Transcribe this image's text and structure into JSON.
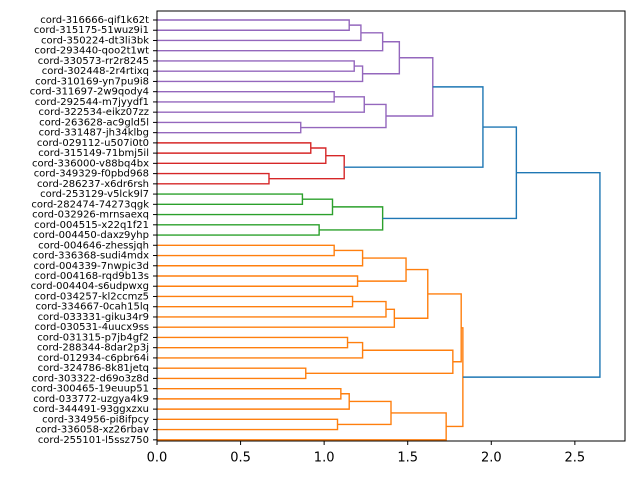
{
  "chart_data": {
    "type": "dendrogram",
    "orientation": "horizontal",
    "xlim": [
      0.0,
      2.8
    ],
    "xticks": [
      0.0,
      0.5,
      1.0,
      1.5,
      2.0,
      2.5
    ],
    "xtick_labels": [
      "0.0",
      "0.5",
      "1.0",
      "1.5",
      "2.0",
      "2.5"
    ],
    "leaves": [
      "cord-316666-qif1k62t",
      "cord-315175-51wuz9i1",
      "cord-350224-dt3li3bk",
      "cord-293440-qoo2t1wt",
      "cord-330573-rr2r8245",
      "cord-302448-2r4rtixq",
      "cord-310169-yn7pu9i8",
      "cord-311697-2w9qody4",
      "cord-292544-m7jyydf1",
      "cord-322534-eikz07zz",
      "cord-263628-ac9gld5l",
      "cord-331487-jh34klbg",
      "cord-029112-u507i0t0",
      "cord-315149-71bmj5il",
      "cord-336000-v88bq4bx",
      "cord-349329-f0pbd968",
      "cord-286237-x6dr6rsh",
      "cord-253129-v5lck9l7",
      "cord-282474-74273qgk",
      "cord-032926-mrnsaexq",
      "cord-004515-x22q1f21",
      "cord-004450-daxz9yhp",
      "cord-004646-zhessjqh",
      "cord-336368-sudi4mdx",
      "cord-004339-7nwpic3d",
      "cord-004168-rqd9b13s",
      "cord-004404-s6udpwxg",
      "cord-034257-kl2ccmz5",
      "cord-334667-0cah15lq",
      "cord-033331-giku34r9",
      "cord-030531-4uucx9ss",
      "cord-031315-p7jb4gf2",
      "cord-288344-8dar2p3j",
      "cord-012934-c6pbr64i",
      "cord-324786-8k81jetq",
      "cord-303322-d69o3z8d",
      "cord-300465-19euup51",
      "cord-033772-uzgya4k9",
      "cord-344491-93ggxzxu",
      "cord-334956-pi8ifpcy",
      "cord-336058-xz26rbav",
      "cord-255101-l5ssz750"
    ],
    "cluster_colors": {
      "purple": "#9467bd",
      "red": "#d62728",
      "green": "#2ca02c",
      "orange": "#ff7f0e",
      "blue": "#1f77b4"
    },
    "merges": [
      {
        "id": "m1",
        "a": 0,
        "b": 1,
        "height": 1.15,
        "color": "purple"
      },
      {
        "id": "m2",
        "a": "m1",
        "b": 2,
        "height": 1.22,
        "color": "purple"
      },
      {
        "id": "m3",
        "a": "m2",
        "b": 3,
        "height": 1.35,
        "color": "purple"
      },
      {
        "id": "m4",
        "a": 4,
        "b": 5,
        "height": 1.18,
        "color": "purple"
      },
      {
        "id": "m5",
        "a": "m4",
        "b": 6,
        "height": 1.23,
        "color": "purple"
      },
      {
        "id": "m6",
        "a": "m3",
        "b": "m5",
        "height": 1.45,
        "color": "purple"
      },
      {
        "id": "m7",
        "a": 7,
        "b": 8,
        "height": 1.06,
        "color": "purple"
      },
      {
        "id": "m8",
        "a": "m7",
        "b": 9,
        "height": 1.24,
        "color": "purple"
      },
      {
        "id": "m9",
        "a": 10,
        "b": 11,
        "height": 0.86,
        "color": "purple"
      },
      {
        "id": "m10",
        "a": "m8",
        "b": "m9",
        "height": 1.37,
        "color": "purple"
      },
      {
        "id": "m11",
        "a": "m6",
        "b": "m10",
        "height": 1.65,
        "color": "purple"
      },
      {
        "id": "m12",
        "a": 12,
        "b": 13,
        "height": 0.92,
        "color": "red"
      },
      {
        "id": "m13",
        "a": "m12",
        "b": 14,
        "height": 1.01,
        "color": "red"
      },
      {
        "id": "m14",
        "a": 15,
        "b": 16,
        "height": 0.67,
        "color": "red"
      },
      {
        "id": "m15",
        "a": "m13",
        "b": "m14",
        "height": 1.12,
        "color": "red"
      },
      {
        "id": "m16",
        "a": "m11",
        "b": "m15",
        "height": 1.95,
        "color": "blue"
      },
      {
        "id": "m17",
        "a": 17,
        "b": 18,
        "height": 0.87,
        "color": "green"
      },
      {
        "id": "m18",
        "a": "m17",
        "b": 19,
        "height": 1.05,
        "color": "green"
      },
      {
        "id": "m19",
        "a": 20,
        "b": 21,
        "height": 0.97,
        "color": "green"
      },
      {
        "id": "m20",
        "a": "m18",
        "b": "m19",
        "height": 1.35,
        "color": "green"
      },
      {
        "id": "m21",
        "a": "m16",
        "b": "m20",
        "height": 2.15,
        "color": "blue"
      },
      {
        "id": "m22",
        "a": 22,
        "b": 23,
        "height": 1.06,
        "color": "orange"
      },
      {
        "id": "m23",
        "a": "m22",
        "b": 24,
        "height": 1.23,
        "color": "orange"
      },
      {
        "id": "m24",
        "a": 25,
        "b": 26,
        "height": 1.2,
        "color": "orange"
      },
      {
        "id": "m25",
        "a": "m23",
        "b": "m24",
        "height": 1.49,
        "color": "orange"
      },
      {
        "id": "m26",
        "a": 27,
        "b": 28,
        "height": 1.17,
        "color": "orange"
      },
      {
        "id": "m27",
        "a": "m26",
        "b": 29,
        "height": 1.37,
        "color": "orange"
      },
      {
        "id": "m28",
        "a": "m27",
        "b": 30,
        "height": 1.42,
        "color": "orange"
      },
      {
        "id": "m29",
        "a": "m25",
        "b": "m28",
        "height": 1.62,
        "color": "orange"
      },
      {
        "id": "m30",
        "a": 31,
        "b": 32,
        "height": 1.14,
        "color": "orange"
      },
      {
        "id": "m31",
        "a": "m30",
        "b": 33,
        "height": 1.23,
        "color": "orange"
      },
      {
        "id": "m32",
        "a": 34,
        "b": 35,
        "height": 0.89,
        "color": "orange"
      },
      {
        "id": "m33",
        "a": "m31",
        "b": "m32",
        "height": 1.77,
        "color": "orange"
      },
      {
        "id": "m34",
        "a": "m29",
        "b": "m33",
        "height": 1.82,
        "color": "orange"
      },
      {
        "id": "m35",
        "a": 36,
        "b": 37,
        "height": 1.1,
        "color": "orange"
      },
      {
        "id": "m36",
        "a": "m35",
        "b": 38,
        "height": 1.15,
        "color": "orange"
      },
      {
        "id": "m37",
        "a": 39,
        "b": 40,
        "height": 1.08,
        "color": "orange"
      },
      {
        "id": "m38",
        "a": "m36",
        "b": "m37",
        "height": 1.4,
        "color": "orange"
      },
      {
        "id": "m39",
        "a": "m38",
        "b": 41,
        "height": 1.73,
        "color": "orange"
      },
      {
        "id": "m40",
        "a": "m34",
        "b": "m39",
        "height": 1.83,
        "color": "orange"
      },
      {
        "id": "m41",
        "a": "m21",
        "b": "m40",
        "height": 2.65,
        "color": "blue"
      }
    ]
  }
}
